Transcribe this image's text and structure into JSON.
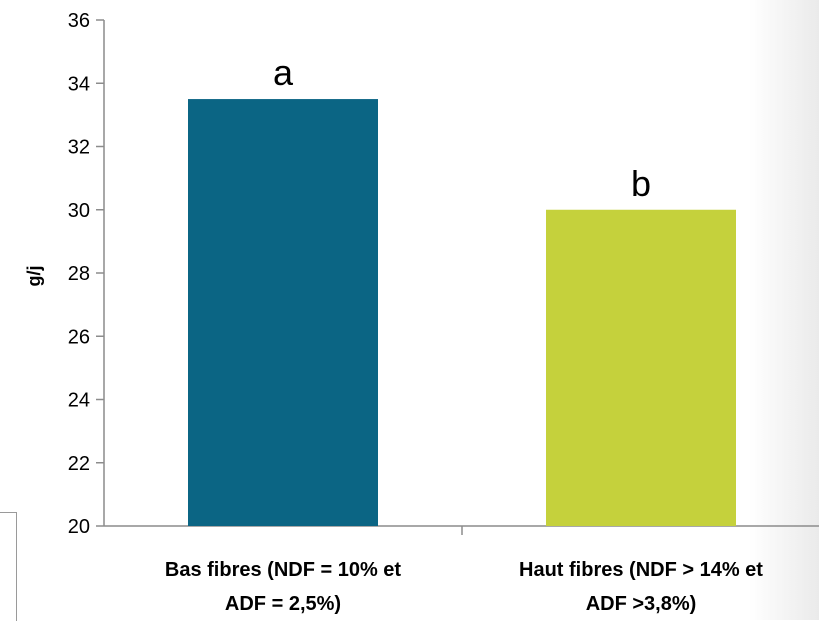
{
  "chart_data": {
    "type": "bar",
    "categories": [
      [
        "Bas fibres (NDF = 10% et",
        "ADF = 2,5%)"
      ],
      [
        "Haut fibres (NDF > 14% et",
        "ADF >3,8%)"
      ]
    ],
    "values": [
      33.5,
      30.0
    ],
    "data_labels": [
      "a",
      "b"
    ],
    "bar_colors": [
      "#0b6584",
      "#c5d13c"
    ],
    "ylabel": "g/j",
    "ylim": [
      20,
      36
    ],
    "yticks": [
      "20",
      "22",
      "24",
      "26",
      "28",
      "30",
      "32",
      "34",
      "36"
    ],
    "grid": false,
    "legend": "none"
  }
}
